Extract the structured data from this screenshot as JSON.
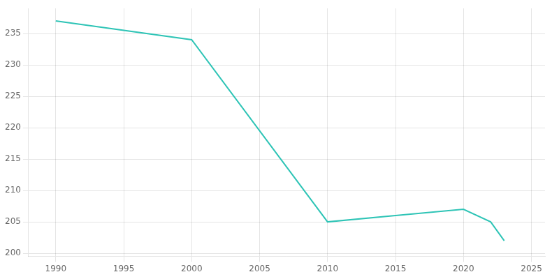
{
  "chart_data": {
    "type": "line",
    "x": [
      1990,
      2000,
      2010,
      2015,
      2020,
      2022,
      2023
    ],
    "values": [
      237,
      234,
      205,
      206,
      207,
      205,
      202
    ],
    "color": "#2EC4B6",
    "xlim": [
      1988,
      2026
    ],
    "ylim": [
      199.5,
      239
    ],
    "xticks": [
      1990,
      1995,
      2000,
      2005,
      2010,
      2015,
      2020,
      2025
    ],
    "yticks": [
      200,
      205,
      210,
      215,
      220,
      225,
      230,
      235
    ],
    "grid": true
  }
}
